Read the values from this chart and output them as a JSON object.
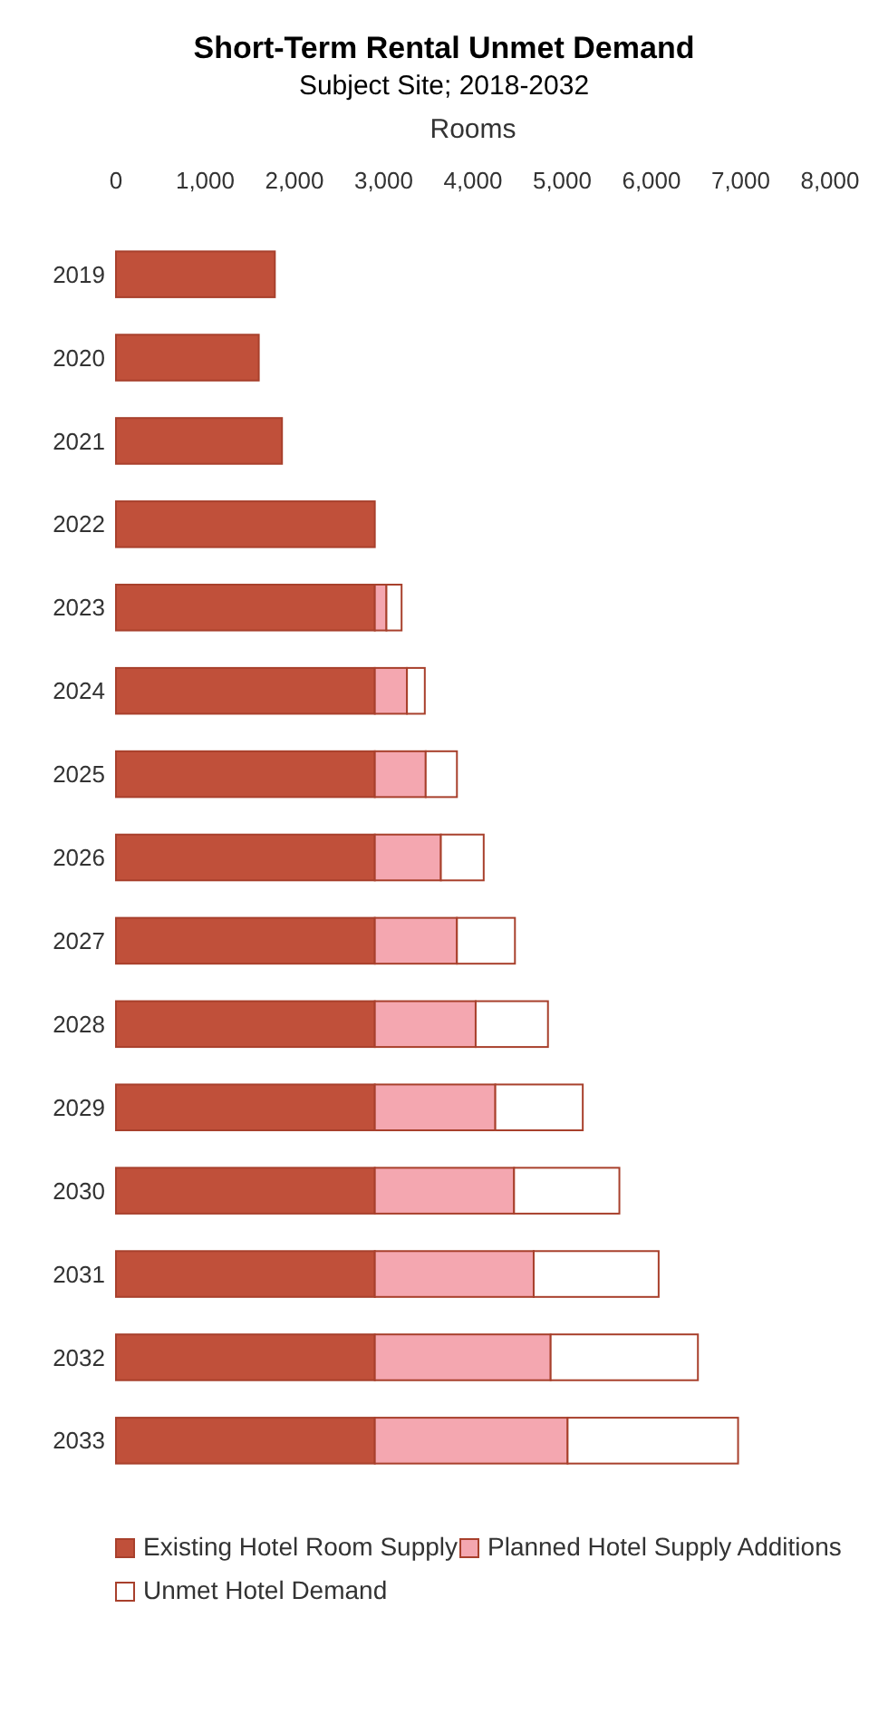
{
  "chart_data": {
    "type": "bar",
    "title": "Short-Term Rental Unmet Demand",
    "subtitle": "Subject Site; 2018-2032",
    "xlabel": "Rooms",
    "orientation": "horizontal",
    "stacked": true,
    "categories": [
      "2019",
      "2020",
      "2021",
      "2022",
      "2023",
      "2024",
      "2025",
      "2026",
      "2027",
      "2028",
      "2029",
      "2030",
      "2031",
      "2032",
      "2033"
    ],
    "series": [
      {
        "name": "Existing Hotel Room Supply",
        "color": "#c0503a",
        "values": [
          1780,
          1600,
          1860,
          2900,
          2900,
          2900,
          2900,
          2900,
          2900,
          2900,
          2900,
          2900,
          2900,
          2900,
          2900
        ]
      },
      {
        "name": "Planned Hotel Supply Additions",
        "color": "#f4a7b0",
        "values": [
          0,
          0,
          0,
          0,
          130,
          360,
          570,
          740,
          920,
          1130,
          1350,
          1560,
          1780,
          1970,
          2160
        ]
      },
      {
        "name": "Unmet Hotel Demand",
        "color": "#ffffff",
        "values": [
          0,
          0,
          0,
          0,
          170,
          200,
          350,
          480,
          650,
          810,
          980,
          1180,
          1400,
          1650,
          1910
        ]
      }
    ],
    "xlim": [
      0,
      8000
    ],
    "xticks": [
      0,
      {
        "value": 1000,
        "label": "1,000"
      },
      {
        "value": 2000,
        "label": "2,000"
      },
      {
        "value": 3000,
        "label": "3,000"
      },
      {
        "value": 4000,
        "label": "4,000"
      },
      {
        "value": 5000,
        "label": "5,000"
      },
      {
        "value": 6000,
        "label": "6,000"
      },
      {
        "value": 7000,
        "label": "7,000"
      },
      {
        "value": 8000,
        "label": "8,000"
      }
    ],
    "grid": false,
    "legend": "bottom"
  }
}
